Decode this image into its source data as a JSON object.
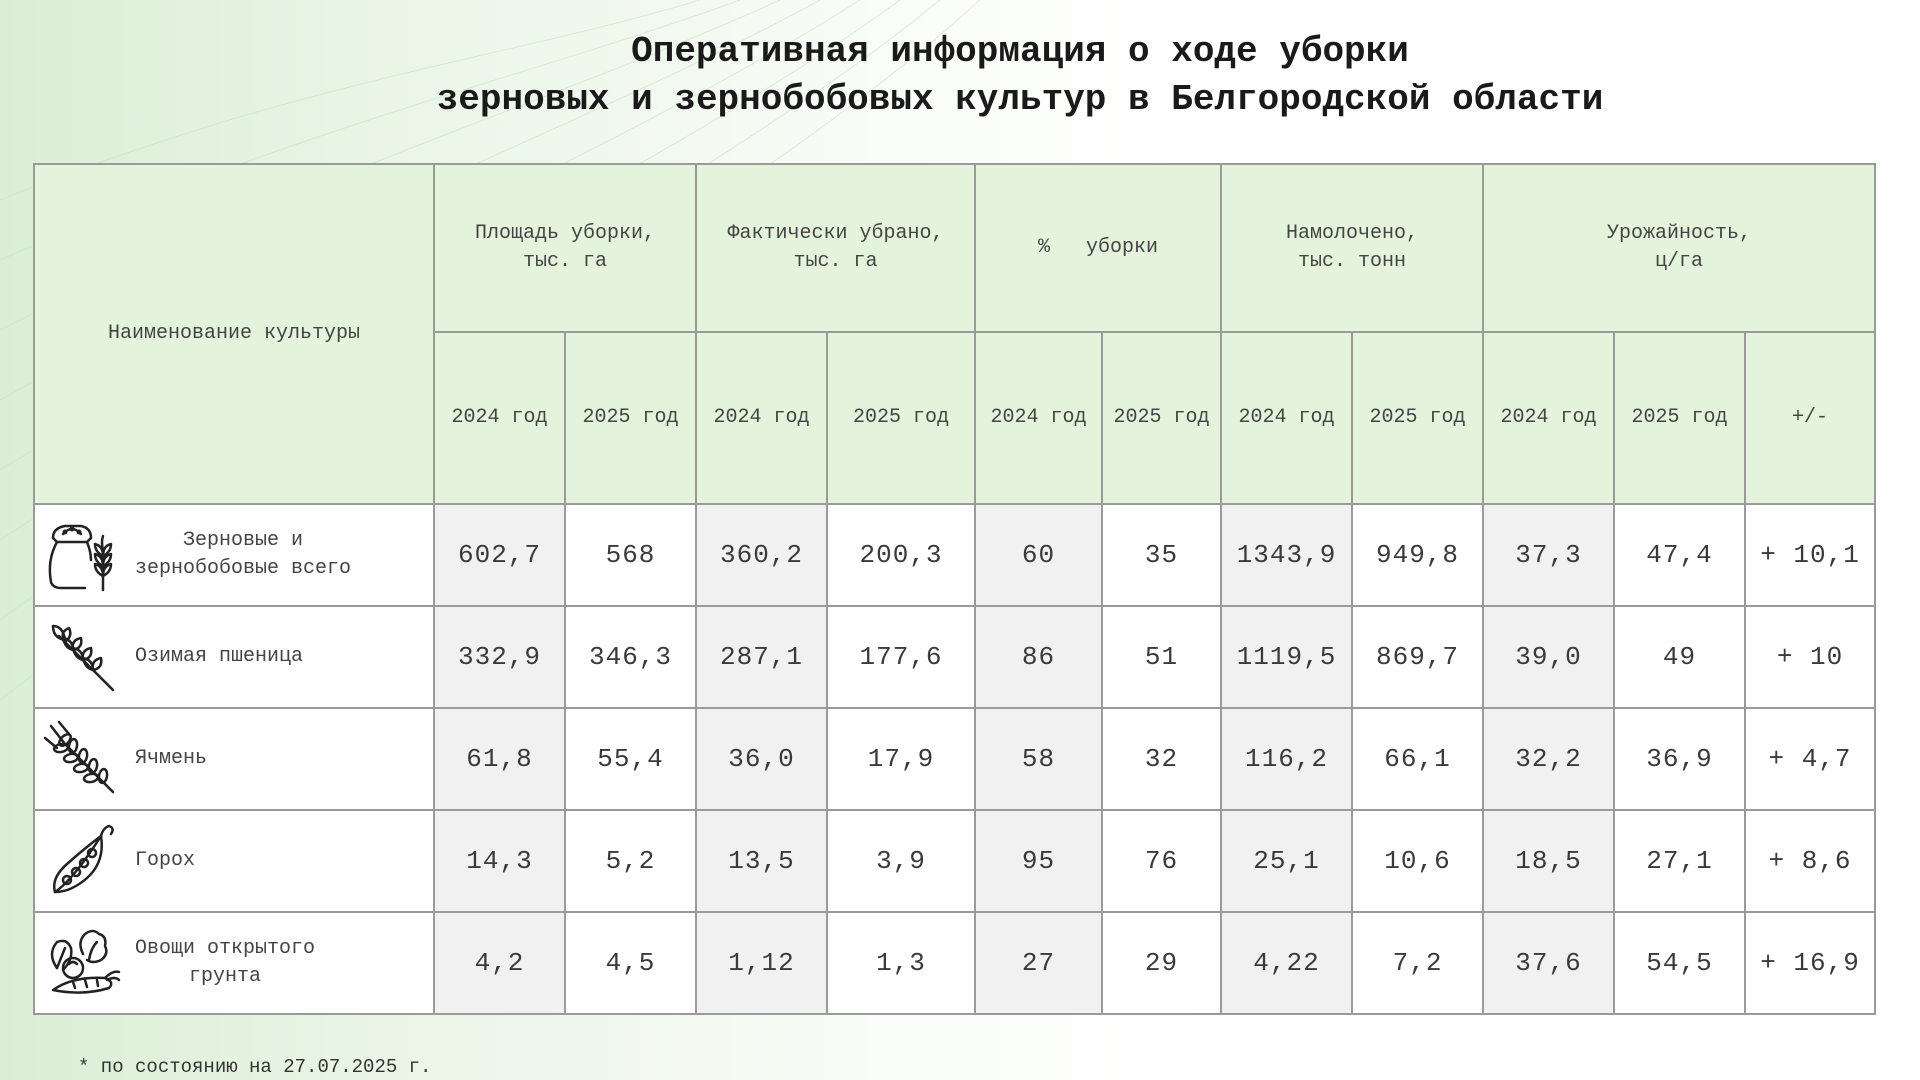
{
  "title": {
    "line1": "Оперативная информация о ходе уборки",
    "line2": "зерновых и зернобобовых культур в Белгородской области"
  },
  "table": {
    "name_header": "Наименование культуры",
    "group_headers": [
      "Площадь уборки,\nтыс. га",
      "Фактически убрано,\nтыс. га",
      "%   уборки",
      "Намолочено,\nтыс. тонн",
      "Урожайность,\nц/га"
    ],
    "year_headers": [
      "2024 год",
      "2025 год"
    ],
    "diff_header": "+/-",
    "rows": [
      {
        "icon": "grain-sack-icon",
        "name": "Зерновые и\nзернобобовые всего",
        "values": [
          "602,7",
          "568",
          "360,2",
          "200,3",
          "60",
          "35",
          "1343,9",
          "949,8",
          "37,3",
          "47,4",
          "+ 10,1"
        ]
      },
      {
        "icon": "wheat-icon",
        "name": "Озимая пшеница",
        "values": [
          "332,9",
          "346,3",
          "287,1",
          "177,6",
          "86",
          "51",
          "1119,5",
          "869,7",
          "39,0",
          "49",
          "+ 10"
        ]
      },
      {
        "icon": "barley-icon",
        "name": "Ячмень",
        "values": [
          "61,8",
          "55,4",
          "36,0",
          "17,9",
          "58",
          "32",
          "116,2",
          "66,1",
          "32,2",
          "36,9",
          "+ 4,7"
        ]
      },
      {
        "icon": "pea-pod-icon",
        "name": "Горох",
        "values": [
          "14,3",
          "5,2",
          "13,5",
          "3,9",
          "95",
          "76",
          "25,1",
          "10,6",
          "18,5",
          "27,1",
          "+ 8,6"
        ]
      },
      {
        "icon": "vegetables-icon",
        "name": "Овощи открытого\nгрунта",
        "values": [
          "4,2",
          "4,5",
          "1,12",
          "1,3",
          "27",
          "29",
          "4,22",
          "7,2",
          "37,6",
          "54,5",
          "+ 16,9"
        ]
      }
    ]
  },
  "footnote": "* по состоянию на 27.07.2025 г.",
  "colors": {
    "header_bg": "#e4f3dc",
    "shaded_cell": "#f1f1f1",
    "border": "#9a9a9a"
  }
}
